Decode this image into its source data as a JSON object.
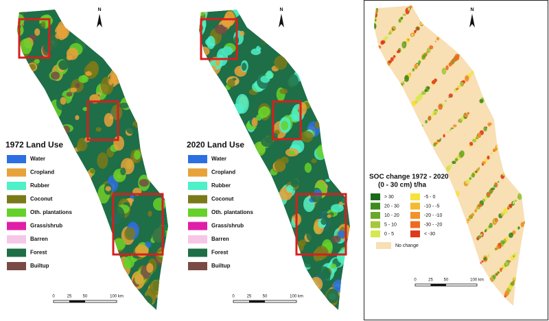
{
  "panels": [
    {
      "north": "N",
      "scale": [
        "0",
        "25",
        "50",
        "100 km"
      ],
      "legend": {
        "title": [
          "1972 Land Use"
        ],
        "items": [
          {
            "label": "Water",
            "color": "#2b6fe0"
          },
          {
            "label": "Cropland",
            "color": "#e8a23a"
          },
          {
            "label": "Rubber",
            "color": "#4ef0c8"
          },
          {
            "label": "Coconut",
            "color": "#7a7a1a"
          },
          {
            "label": "Oth. plantations",
            "color": "#66d12a"
          },
          {
            "label": "Grass/shrub",
            "color": "#e01ea8"
          },
          {
            "label": "Barren",
            "color": "#f6c6e6"
          },
          {
            "label": "Forest",
            "color": "#1e6e48"
          },
          {
            "label": "Builtup",
            "color": "#7a4a44"
          }
        ]
      }
    },
    {
      "north": "N",
      "scale": [
        "0",
        "25",
        "50",
        "100 km"
      ],
      "legend": {
        "title": [
          "2020 Land Use"
        ],
        "items": [
          {
            "label": "Water",
            "color": "#2b6fe0"
          },
          {
            "label": "Cropland",
            "color": "#e8a23a"
          },
          {
            "label": "Rubber",
            "color": "#4ef0c8"
          },
          {
            "label": "Coconut",
            "color": "#7a7a1a"
          },
          {
            "label": "Oth. plantations",
            "color": "#66d12a"
          },
          {
            "label": "Grass/shrub",
            "color": "#e01ea8"
          },
          {
            "label": "Barren",
            "color": "#f6c6e6"
          },
          {
            "label": "Forest",
            "color": "#1e6e48"
          },
          {
            "label": "Builtup",
            "color": "#7a4a44"
          }
        ]
      }
    },
    {
      "north": "N",
      "scale": [
        "0",
        "25",
        "50",
        "100 km"
      ],
      "legend": {
        "title": [
          "SOC change 1972 - 2020",
          "(0 - 30 cm) t/ha"
        ],
        "items": [
          {
            "label": "> 30",
            "color": "#1a6a1a"
          },
          {
            "label": "20 - 30",
            "color": "#3d8a1e"
          },
          {
            "label": "10 - 20",
            "color": "#6aa82a"
          },
          {
            "label": "5 - 10",
            "color": "#a5c83a"
          },
          {
            "label": "0 - 5",
            "color": "#d6e850"
          },
          {
            "label": "-5 - 0",
            "color": "#f6e23a"
          },
          {
            "label": "-10 - -5",
            "color": "#f6b830"
          },
          {
            "label": "-20 - -10",
            "color": "#f29228"
          },
          {
            "label": "-30 - -20",
            "color": "#ee6a20"
          },
          {
            "label": "< -30",
            "color": "#e03a1a"
          },
          {
            "label": "No change",
            "color": "#f8dfb4"
          }
        ]
      }
    }
  ]
}
